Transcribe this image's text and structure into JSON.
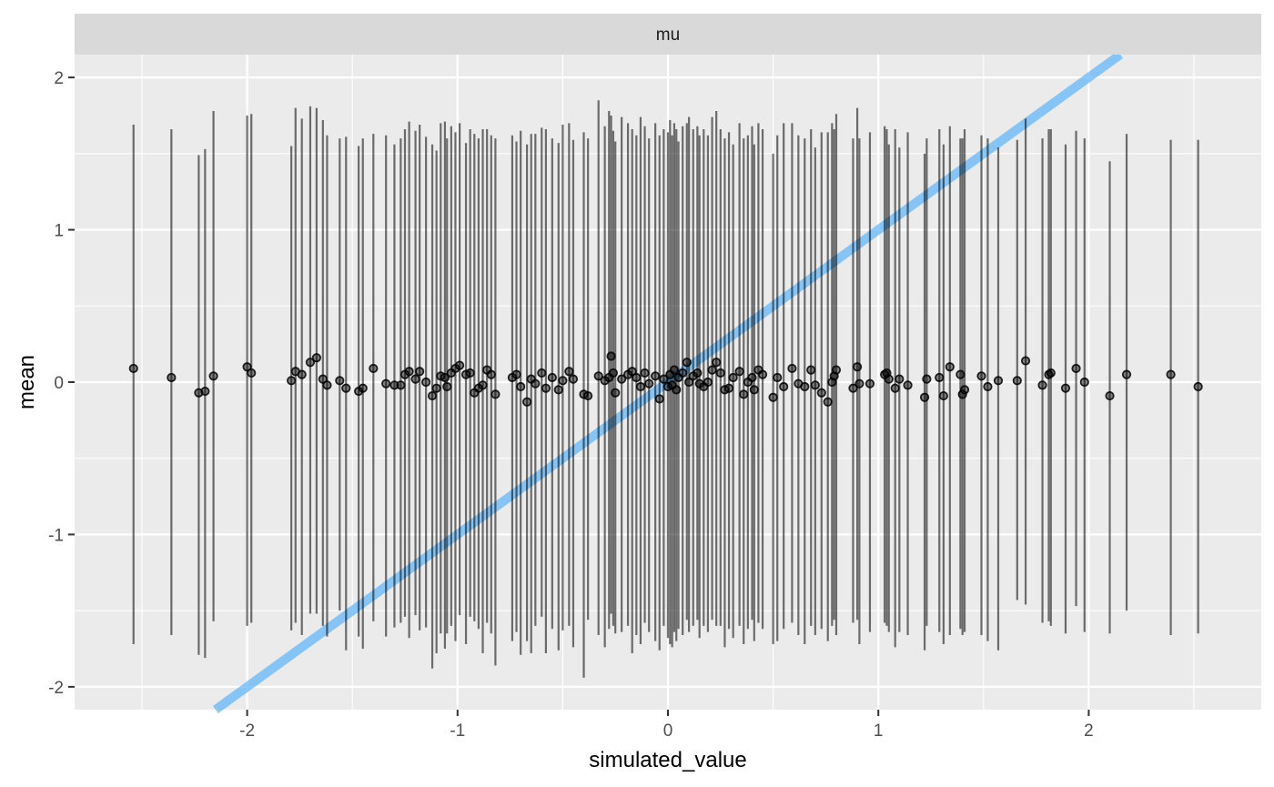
{
  "chart_data": {
    "type": "scatter",
    "facet_label": "mu",
    "xlabel": "simulated_value",
    "ylabel": "mean",
    "xlim": [
      -2.82,
      2.82
    ],
    "ylim": [
      -2.15,
      2.15
    ],
    "x_ticks": [
      -2,
      -1,
      0,
      1,
      2
    ],
    "x_tick_labels": [
      "-2",
      "-1",
      "0",
      "1",
      "2"
    ],
    "y_ticks": [
      -2,
      -1,
      0,
      1,
      2
    ],
    "y_tick_labels": [
      "-2",
      "-1",
      "0",
      "1",
      "2"
    ],
    "grid": true,
    "reference_line": {
      "slope": 1,
      "intercept": 0,
      "color": "#5ab4f8"
    },
    "colors": {
      "panel_background": "#ebebeb",
      "strip_background": "#d9d9d9",
      "grid_major": "#ffffff",
      "points": "#000000",
      "intervals": "#000000"
    },
    "points": [
      {
        "x": -2.54,
        "y": 0.09,
        "lo": -1.72,
        "hi": 1.69
      },
      {
        "x": -2.36,
        "y": 0.03,
        "lo": -1.66,
        "hi": 1.66
      },
      {
        "x": -2.23,
        "y": -0.07,
        "lo": -1.79,
        "hi": 1.49
      },
      {
        "x": -2.2,
        "y": -0.06,
        "lo": -1.81,
        "hi": 1.53
      },
      {
        "x": -2.16,
        "y": 0.04,
        "lo": -1.57,
        "hi": 1.78
      },
      {
        "x": -2.0,
        "y": 0.1,
        "lo": -1.6,
        "hi": 1.75
      },
      {
        "x": -1.98,
        "y": 0.06,
        "lo": -1.58,
        "hi": 1.76
      },
      {
        "x": -1.79,
        "y": 0.01,
        "lo": -1.63,
        "hi": 1.55
      },
      {
        "x": -1.77,
        "y": 0.07,
        "lo": -1.58,
        "hi": 1.8
      },
      {
        "x": -1.74,
        "y": 0.05,
        "lo": -1.66,
        "hi": 1.73
      },
      {
        "x": -1.7,
        "y": 0.13,
        "lo": -1.52,
        "hi": 1.81
      },
      {
        "x": -1.67,
        "y": 0.16,
        "lo": -1.52,
        "hi": 1.8
      },
      {
        "x": -1.64,
        "y": 0.02,
        "lo": -1.6,
        "hi": 1.72
      },
      {
        "x": -1.62,
        "y": -0.02,
        "lo": -1.67,
        "hi": 1.62
      },
      {
        "x": -1.56,
        "y": 0.01,
        "lo": -1.5,
        "hi": 1.6
      },
      {
        "x": -1.53,
        "y": -0.04,
        "lo": -1.76,
        "hi": 1.61
      },
      {
        "x": -1.47,
        "y": -0.06,
        "lo": -1.67,
        "hi": 1.55
      },
      {
        "x": -1.45,
        "y": -0.04,
        "lo": -1.75,
        "hi": 1.6
      },
      {
        "x": -1.4,
        "y": 0.09,
        "lo": -1.57,
        "hi": 1.63
      },
      {
        "x": -1.34,
        "y": -0.01,
        "lo": -1.67,
        "hi": 1.62
      },
      {
        "x": -1.3,
        "y": -0.02,
        "lo": -1.61,
        "hi": 1.56
      },
      {
        "x": -1.27,
        "y": -0.02,
        "lo": -1.58,
        "hi": 1.6
      },
      {
        "x": -1.25,
        "y": 0.05,
        "lo": -1.54,
        "hi": 1.66
      },
      {
        "x": -1.23,
        "y": 0.07,
        "lo": -1.68,
        "hi": 1.71
      },
      {
        "x": -1.2,
        "y": 0.02,
        "lo": -1.53,
        "hi": 1.65
      },
      {
        "x": -1.18,
        "y": 0.07,
        "lo": -1.63,
        "hi": 1.69
      },
      {
        "x": -1.15,
        "y": 0.0,
        "lo": -1.61,
        "hi": 1.61
      },
      {
        "x": -1.12,
        "y": -0.09,
        "lo": -1.88,
        "hi": 1.56
      },
      {
        "x": -1.1,
        "y": -0.04,
        "lo": -1.78,
        "hi": 1.52
      },
      {
        "x": -1.08,
        "y": 0.04,
        "lo": -1.65,
        "hi": 1.7
      },
      {
        "x": -1.06,
        "y": 0.03,
        "lo": -1.75,
        "hi": 1.71
      },
      {
        "x": -1.05,
        "y": -0.03,
        "lo": -1.65,
        "hi": 1.6
      },
      {
        "x": -1.03,
        "y": 0.06,
        "lo": -1.6,
        "hi": 1.68
      },
      {
        "x": -1.01,
        "y": 0.09,
        "lo": -1.7,
        "hi": 1.64
      },
      {
        "x": -0.99,
        "y": 0.11,
        "lo": -1.53,
        "hi": 1.7
      },
      {
        "x": -0.96,
        "y": 0.05,
        "lo": -1.72,
        "hi": 1.57
      },
      {
        "x": -0.94,
        "y": 0.06,
        "lo": -1.54,
        "hi": 1.66
      },
      {
        "x": -0.92,
        "y": -0.07,
        "lo": -1.57,
        "hi": 1.63
      },
      {
        "x": -0.9,
        "y": -0.04,
        "lo": -1.62,
        "hi": 1.6
      },
      {
        "x": -0.88,
        "y": -0.02,
        "lo": -1.78,
        "hi": 1.66
      },
      {
        "x": -0.86,
        "y": 0.08,
        "lo": -1.58,
        "hi": 1.66
      },
      {
        "x": -0.84,
        "y": 0.05,
        "lo": -1.65,
        "hi": 1.62
      },
      {
        "x": -0.82,
        "y": -0.08,
        "lo": -1.86,
        "hi": 1.6
      },
      {
        "x": -0.74,
        "y": 0.03,
        "lo": -1.7,
        "hi": 1.62
      },
      {
        "x": -0.72,
        "y": 0.05,
        "lo": -1.64,
        "hi": 1.58
      },
      {
        "x": -0.7,
        "y": -0.03,
        "lo": -1.79,
        "hi": 1.65
      },
      {
        "x": -0.67,
        "y": -0.13,
        "lo": -1.7,
        "hi": 1.56
      },
      {
        "x": -0.65,
        "y": 0.02,
        "lo": -1.78,
        "hi": 1.63
      },
      {
        "x": -0.63,
        "y": -0.01,
        "lo": -1.6,
        "hi": 1.63
      },
      {
        "x": -0.6,
        "y": 0.06,
        "lo": -1.54,
        "hi": 1.67
      },
      {
        "x": -0.58,
        "y": -0.04,
        "lo": -1.78,
        "hi": 1.66
      },
      {
        "x": -0.55,
        "y": 0.03,
        "lo": -1.62,
        "hi": 1.6
      },
      {
        "x": -0.52,
        "y": -0.05,
        "lo": -1.76,
        "hi": 1.57
      },
      {
        "x": -0.5,
        "y": 0.01,
        "lo": -1.63,
        "hi": 1.69
      },
      {
        "x": -0.47,
        "y": 0.07,
        "lo": -1.6,
        "hi": 1.7
      },
      {
        "x": -0.45,
        "y": 0.02,
        "lo": -1.74,
        "hi": 1.59
      },
      {
        "x": -0.4,
        "y": -0.08,
        "lo": -1.94,
        "hi": 1.64
      },
      {
        "x": -0.38,
        "y": -0.09,
        "lo": -1.56,
        "hi": 1.6
      },
      {
        "x": -0.33,
        "y": 0.04,
        "lo": -1.66,
        "hi": 1.85
      },
      {
        "x": -0.3,
        "y": 0.01,
        "lo": -1.74,
        "hi": 1.68
      },
      {
        "x": -0.28,
        "y": 0.03,
        "lo": -1.62,
        "hi": 1.78
      },
      {
        "x": -0.27,
        "y": 0.17,
        "lo": -1.52,
        "hi": 1.75
      },
      {
        "x": -0.26,
        "y": 0.06,
        "lo": -1.6,
        "hi": 1.65
      },
      {
        "x": -0.25,
        "y": -0.07,
        "lo": -1.65,
        "hi": 1.58
      },
      {
        "x": -0.22,
        "y": 0.02,
        "lo": -1.64,
        "hi": 1.74
      },
      {
        "x": -0.19,
        "y": 0.05,
        "lo": -1.6,
        "hi": 1.7
      },
      {
        "x": -0.17,
        "y": 0.07,
        "lo": -1.78,
        "hi": 1.66
      },
      {
        "x": -0.15,
        "y": 0.03,
        "lo": -1.66,
        "hi": 1.62
      },
      {
        "x": -0.13,
        "y": -0.03,
        "lo": -1.72,
        "hi": 1.74
      },
      {
        "x": -0.11,
        "y": 0.06,
        "lo": -1.58,
        "hi": 1.68
      },
      {
        "x": -0.09,
        "y": -0.01,
        "lo": -1.64,
        "hi": 1.6
      },
      {
        "x": -0.06,
        "y": 0.04,
        "lo": -1.7,
        "hi": 1.7
      },
      {
        "x": -0.04,
        "y": -0.11,
        "lo": -1.76,
        "hi": 1.62
      },
      {
        "x": -0.02,
        "y": 0.02,
        "lo": -1.6,
        "hi": 1.66
      },
      {
        "x": 0.0,
        "y": -0.03,
        "lo": -1.68,
        "hi": 1.64
      },
      {
        "x": 0.01,
        "y": 0.05,
        "lo": -1.72,
        "hi": 1.72
      },
      {
        "x": 0.02,
        "y": -0.02,
        "lo": -1.74,
        "hi": 1.62
      },
      {
        "x": 0.03,
        "y": 0.08,
        "lo": -1.64,
        "hi": 1.7
      },
      {
        "x": 0.04,
        "y": -0.05,
        "lo": -1.7,
        "hi": 1.66
      },
      {
        "x": 0.05,
        "y": 0.03,
        "lo": -1.62,
        "hi": 1.58
      },
      {
        "x": 0.07,
        "y": 0.06,
        "lo": -1.66,
        "hi": 1.68
      },
      {
        "x": 0.09,
        "y": 0.13,
        "lo": -1.56,
        "hi": 1.7
      },
      {
        "x": 0.1,
        "y": 0.0,
        "lo": -1.64,
        "hi": 1.74
      },
      {
        "x": 0.12,
        "y": 0.04,
        "lo": -1.6,
        "hi": 1.66
      },
      {
        "x": 0.14,
        "y": 0.06,
        "lo": -1.56,
        "hi": 1.68
      },
      {
        "x": 0.15,
        "y": -0.01,
        "lo": -1.68,
        "hi": 1.62
      },
      {
        "x": 0.17,
        "y": -0.03,
        "lo": -1.6,
        "hi": 1.66
      },
      {
        "x": 0.19,
        "y": 0.0,
        "lo": -1.64,
        "hi": 1.62
      },
      {
        "x": 0.21,
        "y": 0.08,
        "lo": -1.56,
        "hi": 1.74
      },
      {
        "x": 0.23,
        "y": 0.13,
        "lo": -1.6,
        "hi": 1.78
      },
      {
        "x": 0.25,
        "y": 0.06,
        "lo": -1.6,
        "hi": 1.66
      },
      {
        "x": 0.27,
        "y": -0.05,
        "lo": -1.74,
        "hi": 1.6
      },
      {
        "x": 0.29,
        "y": -0.04,
        "lo": -1.62,
        "hi": 1.64
      },
      {
        "x": 0.31,
        "y": 0.03,
        "lo": -1.68,
        "hi": 1.56
      },
      {
        "x": 0.34,
        "y": 0.07,
        "lo": -1.6,
        "hi": 1.7
      },
      {
        "x": 0.36,
        "y": -0.08,
        "lo": -1.72,
        "hi": 1.6
      },
      {
        "x": 0.38,
        "y": 0.0,
        "lo": -1.62,
        "hi": 1.62
      },
      {
        "x": 0.4,
        "y": 0.03,
        "lo": -1.56,
        "hi": 1.68
      },
      {
        "x": 0.41,
        "y": -0.05,
        "lo": -1.7,
        "hi": 1.56
      },
      {
        "x": 0.43,
        "y": 0.08,
        "lo": -1.58,
        "hi": 1.7
      },
      {
        "x": 0.45,
        "y": 0.05,
        "lo": -1.62,
        "hi": 1.66
      },
      {
        "x": 0.5,
        "y": -0.1,
        "lo": -1.72,
        "hi": 1.5
      },
      {
        "x": 0.52,
        "y": 0.03,
        "lo": -1.7,
        "hi": 1.62
      },
      {
        "x": 0.55,
        "y": -0.03,
        "lo": -1.62,
        "hi": 1.7
      },
      {
        "x": 0.59,
        "y": 0.09,
        "lo": -1.58,
        "hi": 1.7
      },
      {
        "x": 0.62,
        "y": -0.01,
        "lo": -1.66,
        "hi": 1.62
      },
      {
        "x": 0.65,
        "y": -0.03,
        "lo": -1.72,
        "hi": 1.6
      },
      {
        "x": 0.68,
        "y": 0.08,
        "lo": -1.6,
        "hi": 1.66
      },
      {
        "x": 0.7,
        "y": -0.02,
        "lo": -1.66,
        "hi": 1.54
      },
      {
        "x": 0.73,
        "y": -0.07,
        "lo": -1.62,
        "hi": 1.64
      },
      {
        "x": 0.76,
        "y": -0.13,
        "lo": -1.7,
        "hi": 1.64
      },
      {
        "x": 0.78,
        "y": 0.0,
        "lo": -1.6,
        "hi": 1.7
      },
      {
        "x": 0.79,
        "y": 0.04,
        "lo": -1.56,
        "hi": 1.66
      },
      {
        "x": 0.8,
        "y": 0.08,
        "lo": -1.66,
        "hi": 1.76
      },
      {
        "x": 0.88,
        "y": -0.04,
        "lo": -1.58,
        "hi": 1.6
      },
      {
        "x": 0.9,
        "y": 0.1,
        "lo": -1.56,
        "hi": 1.8
      },
      {
        "x": 0.91,
        "y": -0.01,
        "lo": -1.72,
        "hi": 1.6
      },
      {
        "x": 0.96,
        "y": -0.01,
        "lo": -1.64,
        "hi": 1.64
      },
      {
        "x": 1.03,
        "y": 0.05,
        "lo": -1.58,
        "hi": 1.68
      },
      {
        "x": 1.04,
        "y": 0.06,
        "lo": -1.6,
        "hi": 1.66
      },
      {
        "x": 1.05,
        "y": 0.02,
        "lo": -1.64,
        "hi": 1.56
      },
      {
        "x": 1.08,
        "y": -0.04,
        "lo": -1.74,
        "hi": 1.66
      },
      {
        "x": 1.1,
        "y": 0.02,
        "lo": -1.64,
        "hi": 1.54
      },
      {
        "x": 1.14,
        "y": -0.02,
        "lo": -1.66,
        "hi": 1.64
      },
      {
        "x": 1.22,
        "y": -0.1,
        "lo": -1.76,
        "hi": 1.5
      },
      {
        "x": 1.23,
        "y": 0.02,
        "lo": -1.6,
        "hi": 1.6
      },
      {
        "x": 1.29,
        "y": 0.03,
        "lo": -1.64,
        "hi": 1.66
      },
      {
        "x": 1.31,
        "y": -0.09,
        "lo": -1.72,
        "hi": 1.56
      },
      {
        "x": 1.34,
        "y": 0.1,
        "lo": -1.66,
        "hi": 1.68
      },
      {
        "x": 1.39,
        "y": 0.05,
        "lo": -1.62,
        "hi": 1.6
      },
      {
        "x": 1.4,
        "y": -0.08,
        "lo": -1.66,
        "hi": 1.6
      },
      {
        "x": 1.41,
        "y": -0.05,
        "lo": -1.64,
        "hi": 1.66
      },
      {
        "x": 1.49,
        "y": 0.04,
        "lo": -1.66,
        "hi": 1.62
      },
      {
        "x": 1.52,
        "y": -0.03,
        "lo": -1.7,
        "hi": 1.6
      },
      {
        "x": 1.57,
        "y": 0.01,
        "lo": -1.76,
        "hi": 1.54
      },
      {
        "x": 1.66,
        "y": 0.01,
        "lo": -1.43,
        "hi": 1.59
      },
      {
        "x": 1.7,
        "y": 0.14,
        "lo": -1.46,
        "hi": 1.73
      },
      {
        "x": 1.78,
        "y": -0.02,
        "lo": -1.58,
        "hi": 1.6
      },
      {
        "x": 1.81,
        "y": 0.05,
        "lo": -1.57,
        "hi": 1.66
      },
      {
        "x": 1.82,
        "y": 0.06,
        "lo": -1.6,
        "hi": 1.66
      },
      {
        "x": 1.89,
        "y": -0.04,
        "lo": -1.65,
        "hi": 1.56
      },
      {
        "x": 1.94,
        "y": 0.09,
        "lo": -1.47,
        "hi": 1.65
      },
      {
        "x": 1.98,
        "y": 0.0,
        "lo": -1.64,
        "hi": 1.6
      },
      {
        "x": 2.1,
        "y": -0.09,
        "lo": -1.65,
        "hi": 1.45
      },
      {
        "x": 2.18,
        "y": 0.05,
        "lo": -1.5,
        "hi": 1.63
      },
      {
        "x": 2.39,
        "y": 0.05,
        "lo": -1.66,
        "hi": 1.59
      },
      {
        "x": 2.52,
        "y": -0.03,
        "lo": -1.65,
        "hi": 1.59
      }
    ]
  }
}
